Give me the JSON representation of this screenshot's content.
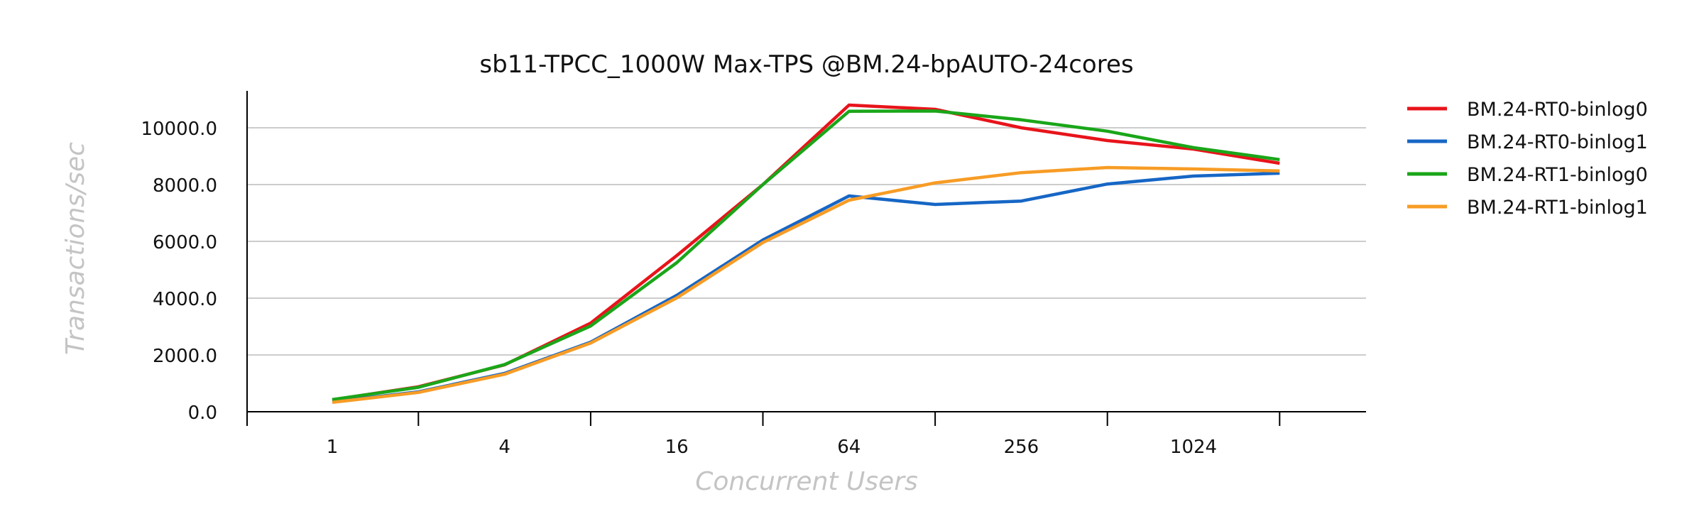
{
  "chart_data": {
    "type": "line",
    "title": "sb11-TPCC_1000W Max-TPS @BM.24-bpAUTO-24cores",
    "xlabel": "Concurrent Users",
    "ylabel": "Transactions/sec",
    "x": [
      1,
      2,
      4,
      8,
      16,
      32,
      64,
      128,
      256,
      512,
      1024,
      2048
    ],
    "x_ticks": [
      1,
      4,
      16,
      64,
      256,
      1024
    ],
    "x_tick_labels": [
      "1",
      "4",
      "16",
      "64",
      "256",
      "1024"
    ],
    "x_scale": "log2",
    "y_ticks": [
      0,
      2000,
      4000,
      6000,
      8000,
      10000
    ],
    "y_tick_labels": [
      "0.0",
      "2000.0",
      "4000.0",
      "6000.0",
      "8000.0",
      "10000.0"
    ],
    "ylim": [
      0,
      11300
    ],
    "grid": "horizontal",
    "legend_position": "right",
    "series": [
      {
        "name": "BM.24-RT0-binlog0",
        "color": "#e8141b",
        "values": [
          420,
          880,
          1650,
          3120,
          5500,
          8000,
          10800,
          10650,
          10000,
          9550,
          9250,
          8750
        ]
      },
      {
        "name": "BM.24-RT0-binlog1",
        "color": "#1666c5",
        "values": [
          350,
          700,
          1350,
          2450,
          4100,
          6050,
          7600,
          7300,
          7420,
          8020,
          8300,
          8400
        ]
      },
      {
        "name": "BM.24-RT1-binlog0",
        "color": "#1aa619",
        "values": [
          430,
          860,
          1660,
          3020,
          5250,
          8000,
          10580,
          10590,
          10280,
          9880,
          9300,
          8880
        ]
      },
      {
        "name": "BM.24-RT1-binlog1",
        "color": "#f79c25",
        "values": [
          330,
          680,
          1320,
          2420,
          4010,
          5960,
          7450,
          8060,
          8420,
          8600,
          8550,
          8480
        ]
      }
    ]
  }
}
